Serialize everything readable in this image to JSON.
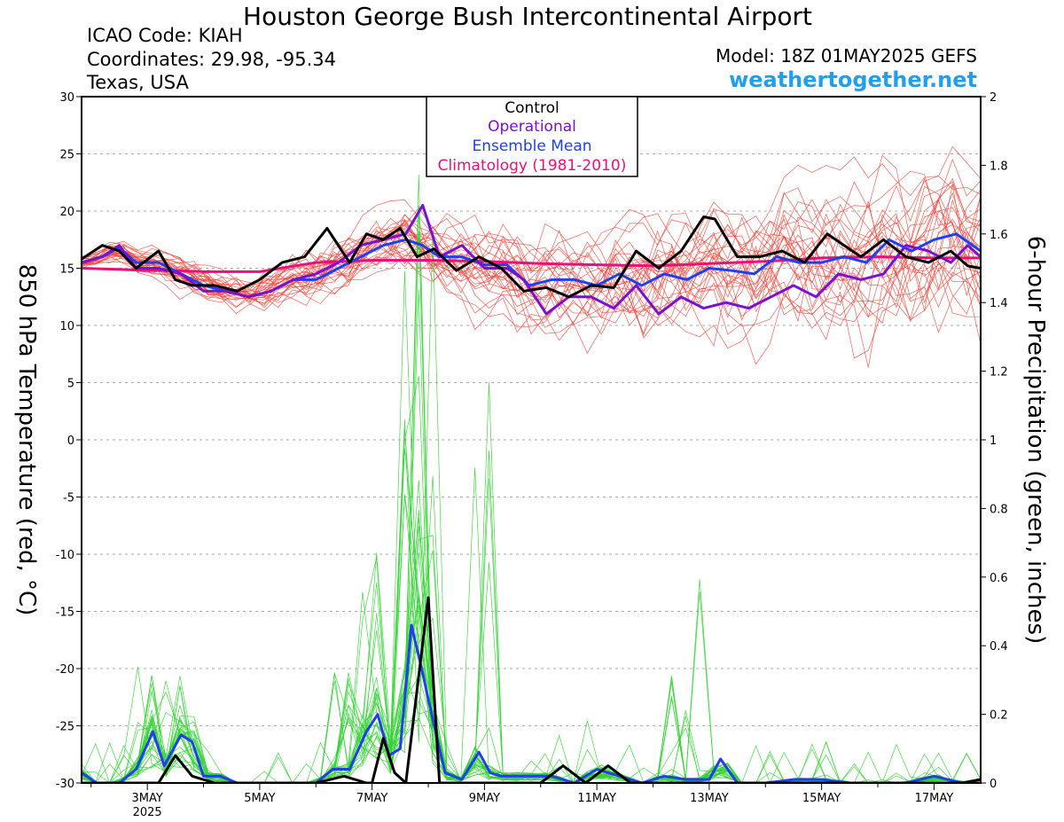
{
  "header": {
    "title": "Houston George Bush Intercontinental Airport",
    "icao": "ICAO Code: KIAH",
    "coordinates": "Coordinates: 29.98, -95.34",
    "location": "Texas, USA",
    "model": "Model: 18Z 01MAY2025 GEFS",
    "brand": "weathertogether.net"
  },
  "colors": {
    "members_temp": "#f0463c",
    "members_precip": "#32d232",
    "control": "#000000",
    "operational": "#7a10d0",
    "ensemble_mean": "#2040ee",
    "climatology": "#e8107a"
  },
  "chart_data": {
    "type": "line",
    "ylabel": "850 hPa Temperature (red, °C)",
    "y2label": "6-hour Precipitation (green, inches)",
    "ylim": [
      -30,
      30
    ],
    "y2lim": [
      0,
      2
    ],
    "x_range_days": [
      1.83,
      17.83
    ],
    "yticks": [
      "30",
      "25",
      "20",
      "15",
      "10",
      "5",
      "0",
      "-5",
      "-10",
      "-15",
      "-20",
      "-25",
      "-30"
    ],
    "y2ticks": [
      "2",
      "1.8",
      "1.6",
      "1.4",
      "1.2",
      "1",
      "0.8",
      "0.6",
      "0.4",
      "0.2",
      "0"
    ],
    "xticks": [
      {
        "day": 3,
        "label": "3MAY",
        "sub": "2025"
      },
      {
        "day": 5,
        "label": "5MAY",
        "sub": ""
      },
      {
        "day": 7,
        "label": "7MAY",
        "sub": ""
      },
      {
        "day": 9,
        "label": "9MAY",
        "sub": ""
      },
      {
        "day": 11,
        "label": "11MAY",
        "sub": ""
      },
      {
        "day": 13,
        "label": "13MAY",
        "sub": ""
      },
      {
        "day": 15,
        "label": "15MAY",
        "sub": ""
      },
      {
        "day": 17,
        "label": "17MAY",
        "sub": ""
      }
    ],
    "legend": [
      "Control",
      "Operational",
      "Ensemble Mean",
      "Climatology (1981-2010)"
    ],
    "legend_placement": "top-center",
    "grid": "dashed horizontal at y ticks",
    "series": {
      "control_temp": {
        "x": [
          1.83,
          2.2,
          2.5,
          2.8,
          3.2,
          3.5,
          3.8,
          4.2,
          4.6,
          5,
          5.4,
          5.8,
          6.2,
          6.6,
          6.9,
          7.2,
          7.5,
          7.8,
          8.1,
          8.5,
          8.9,
          9.3,
          9.7,
          10.1,
          10.5,
          10.9,
          11.3,
          11.7,
          12.1,
          12.5,
          12.9,
          13.1,
          13.5,
          13.9,
          14.3,
          14.7,
          15.1,
          15.4,
          15.7,
          16.1,
          16.5,
          16.9,
          17.3,
          17.6,
          17.83
        ],
        "y": [
          15.8,
          17,
          16.5,
          15,
          16.5,
          14,
          13.5,
          13.5,
          13,
          14,
          15.5,
          16,
          18.5,
          15.5,
          18,
          17.5,
          18.5,
          16,
          16.7,
          14.8,
          16,
          15,
          13,
          13.3,
          12.5,
          13.5,
          13.3,
          16.5,
          15,
          16.5,
          19.5,
          19.3,
          16,
          16,
          16.5,
          15.5,
          18,
          17,
          16,
          17.5,
          16,
          15.5,
          16.5,
          15.2,
          15
        ]
      },
      "control_precip": {
        "x": [
          1.83,
          2.2,
          2.6,
          3.0,
          3.2,
          3.5,
          3.8,
          4.2,
          4.6,
          5,
          5.5,
          6,
          6.5,
          6.9,
          7,
          7.2,
          7.4,
          7.6,
          7.8,
          8,
          8.2,
          8.5,
          9,
          9.5,
          10,
          10.4,
          10.8,
          11.2,
          11.6,
          12,
          12.4,
          12.8,
          13.2,
          13.6,
          14,
          14.5,
          15,
          15.5,
          16,
          16.5,
          17,
          17.5,
          17.83
        ],
        "y": [
          0,
          0,
          0,
          0,
          0,
          0.08,
          0.02,
          0,
          0,
          0,
          0,
          0,
          0.02,
          0,
          0,
          0.13,
          0.03,
          0,
          0.27,
          0.54,
          0,
          0,
          0,
          0,
          0,
          0.05,
          0,
          0.05,
          0,
          0,
          0,
          0,
          0,
          0,
          0,
          0,
          0,
          0,
          0,
          0,
          0,
          0,
          0.01
        ]
      },
      "operational_temp": {
        "x": [
          1.83,
          2.2,
          2.5,
          2.8,
          3.2,
          3.6,
          4,
          4.4,
          4.8,
          5.2,
          5.6,
          6,
          6.4,
          6.8,
          7.2,
          7.6,
          7.9,
          8.2,
          8.6,
          9,
          9.4,
          9.7,
          10.1,
          10.5,
          10.9,
          11.3,
          11.7,
          12.1,
          12.5,
          12.9,
          13.3,
          13.7,
          14.1,
          14.5,
          14.9,
          15.3,
          15.7,
          16.1,
          16.5,
          16.9,
          17.3,
          17.6,
          17.83
        ],
        "y": [
          15.5,
          16,
          17,
          15,
          15,
          14.5,
          13,
          13,
          12.5,
          13,
          14,
          14.5,
          15.5,
          17,
          17.5,
          18,
          20.5,
          16,
          17,
          15,
          15,
          14,
          11,
          12.5,
          12.5,
          11.5,
          13.5,
          11,
          12.5,
          11.5,
          12,
          11.5,
          12.5,
          13.5,
          12.5,
          14.5,
          14,
          14.5,
          17,
          16.5,
          15.5,
          17,
          16
        ]
      },
      "mean_temp": {
        "x": [
          1.83,
          2.2,
          2.5,
          2.8,
          3.2,
          3.6,
          4,
          4.4,
          4.8,
          5.2,
          5.6,
          6,
          6.4,
          6.8,
          7.2,
          7.6,
          7.9,
          8.2,
          8.6,
          9,
          9.4,
          9.8,
          10.2,
          10.6,
          11,
          11.4,
          11.8,
          12.2,
          12.6,
          13,
          13.4,
          13.8,
          14.2,
          14.6,
          15,
          15.4,
          15.8,
          16.2,
          16.6,
          17,
          17.4,
          17.83
        ],
        "y": [
          15.5,
          16,
          16.8,
          15.5,
          15.5,
          14.5,
          13.5,
          13,
          12.5,
          13,
          14,
          14,
          15,
          16,
          17,
          17.5,
          17,
          16,
          16,
          15.3,
          15.3,
          13.5,
          14,
          14,
          13.5,
          14.5,
          13.5,
          14.5,
          14,
          15,
          14.8,
          14.5,
          16,
          15.5,
          15.5,
          16,
          15.5,
          17.5,
          16.5,
          17.5,
          18,
          16.5
        ]
      },
      "mean_precip": {
        "x": [
          1.83,
          2.1,
          2.5,
          2.8,
          3.1,
          3.3,
          3.6,
          3.8,
          4,
          4.3,
          4.6,
          5,
          5.5,
          6,
          6.3,
          6.6,
          6.9,
          7.1,
          7.3,
          7.5,
          7.7,
          7.9,
          8.1,
          8.3,
          8.6,
          8.9,
          9.1,
          9.3,
          9.6,
          9.9,
          10.2,
          10.6,
          11,
          11.4,
          11.8,
          12.2,
          12.6,
          13,
          13.2,
          13.5,
          14,
          14.5,
          15,
          15.5,
          16,
          16.5,
          17,
          17.5,
          17.83
        ],
        "y": [
          0.03,
          0,
          0,
          0.04,
          0.15,
          0.05,
          0.14,
          0.12,
          0.02,
          0.02,
          0,
          0,
          0,
          0,
          0.04,
          0.04,
          0.15,
          0.2,
          0.08,
          0.1,
          0.46,
          0.32,
          0.17,
          0.03,
          0.01,
          0.09,
          0.03,
          0.02,
          0.02,
          0.02,
          0.02,
          0,
          0.04,
          0.02,
          0,
          0.02,
          0.01,
          0.01,
          0.07,
          0,
          0,
          0.01,
          0.01,
          0,
          0,
          0,
          0.02,
          0,
          0.01
        ]
      },
      "climatology_temp": {
        "x": [
          1.83,
          2.5,
          3,
          3.5,
          4,
          4.5,
          5,
          5.5,
          6,
          7,
          8,
          9,
          10,
          11,
          12,
          13,
          14,
          15,
          16,
          17,
          17.83
        ],
        "y": [
          15,
          14.9,
          14.8,
          14.8,
          14.7,
          14.7,
          14.7,
          15.1,
          15.5,
          15.7,
          15.7,
          15.6,
          15.4,
          15.3,
          15.2,
          15.4,
          15.6,
          15.9,
          16,
          15.9,
          15.9
        ]
      }
    }
  }
}
